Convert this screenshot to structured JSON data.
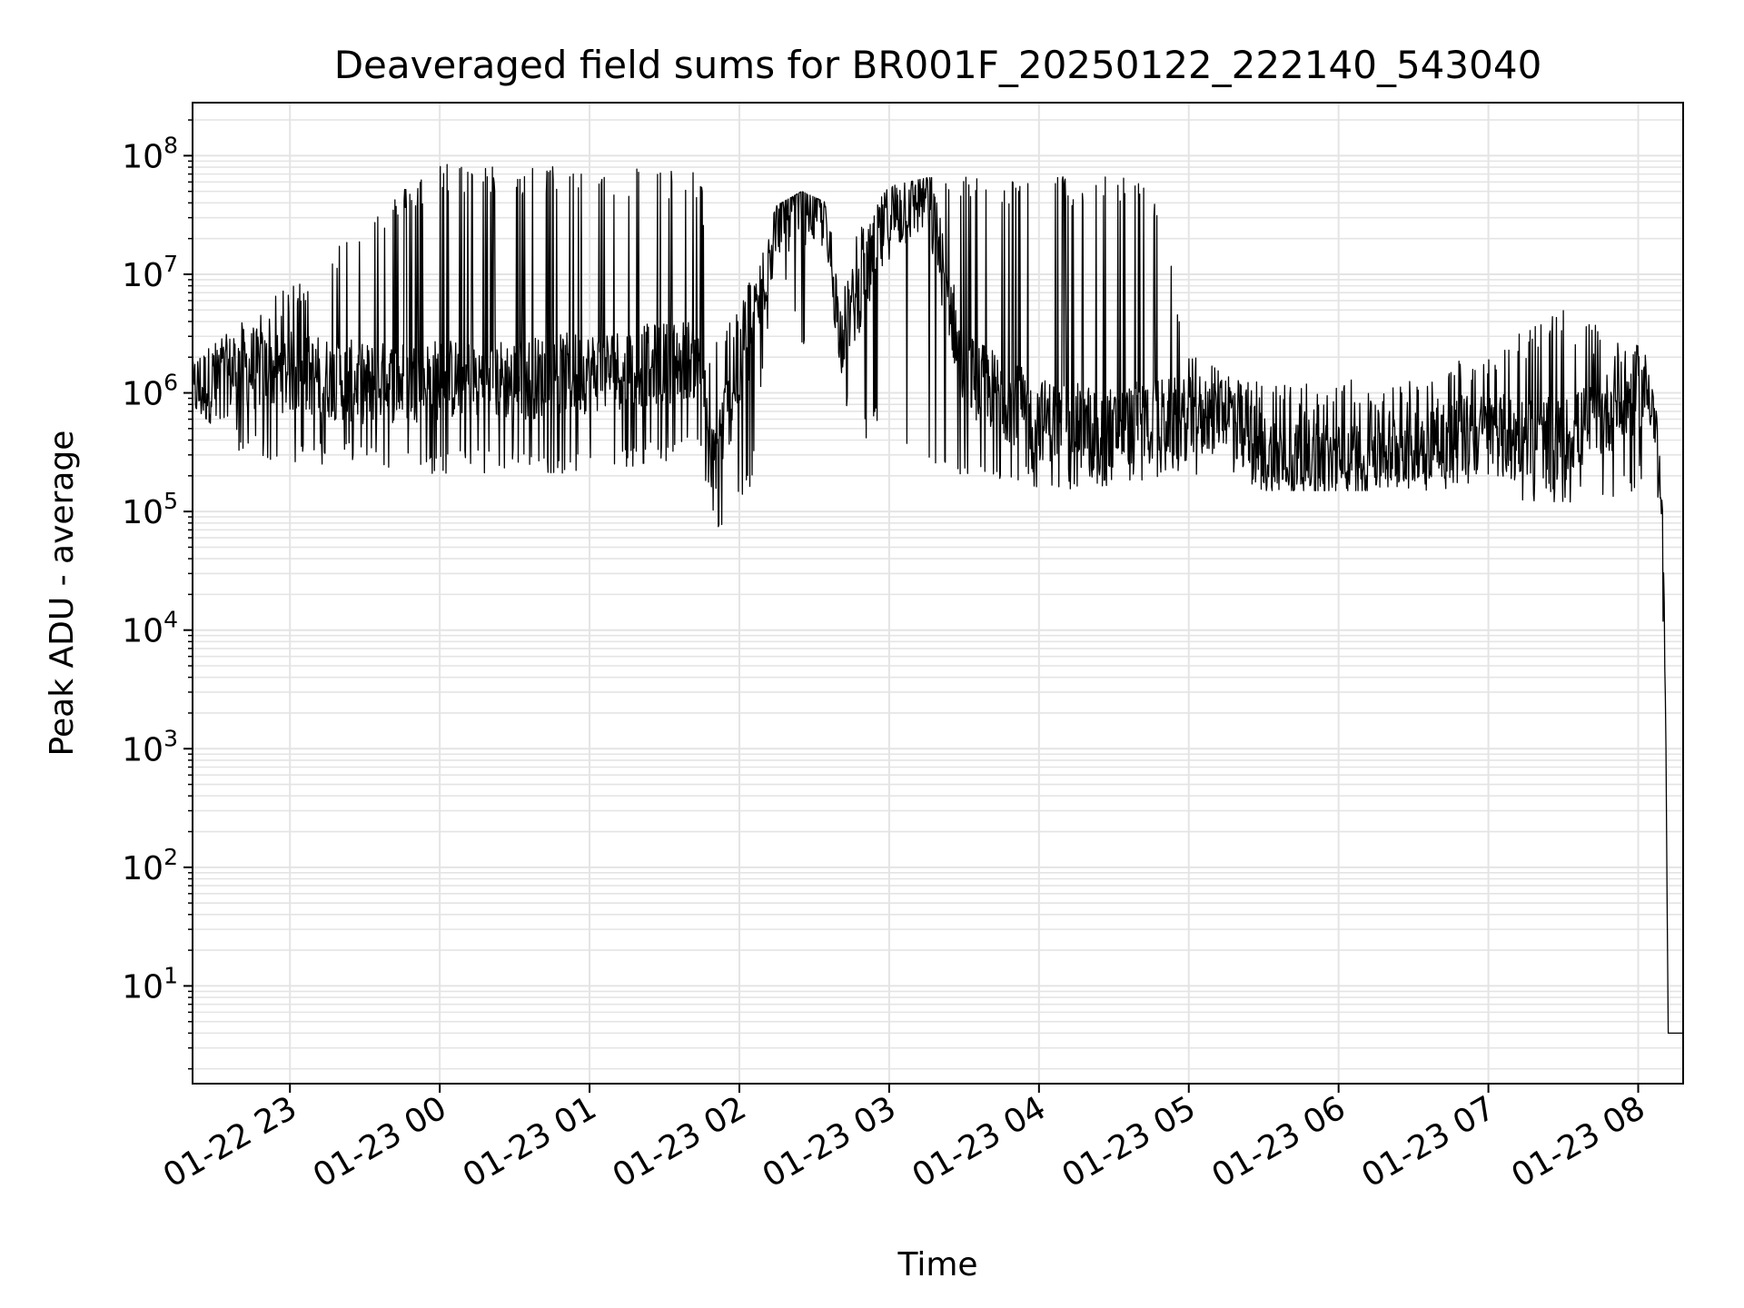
{
  "chart_data": {
    "type": "line",
    "title": "Deaveraged field sums for BR001F_20250122_222140_543040",
    "xlabel": "Time",
    "ylabel": "Peak ADU - average",
    "yscale": "log",
    "ylim": [
      1.5,
      280000000
    ],
    "xlim": [
      "01-22 22:21",
      "01-23 08:18"
    ],
    "grid": true,
    "line_color": "#000000",
    "xticks": [
      "01-22 23",
      "01-23 00",
      "01-23 01",
      "01-23 02",
      "01-23 03",
      "01-23 04",
      "01-23 05",
      "01-23 06",
      "01-23 07",
      "01-23 08"
    ],
    "yticks": [
      {
        "base": "10",
        "exp": "1"
      },
      {
        "base": "10",
        "exp": "2"
      },
      {
        "base": "10",
        "exp": "3"
      },
      {
        "base": "10",
        "exp": "4"
      },
      {
        "base": "10",
        "exp": "5"
      },
      {
        "base": "10",
        "exp": "6"
      },
      {
        "base": "10",
        "exp": "7"
      },
      {
        "base": "10",
        "exp": "8"
      }
    ],
    "series": [
      {
        "x": [
          "01-22 22:21",
          "01-22 22:40",
          "01-22 23:00",
          "01-22 23:30",
          "01-23 00:00",
          "01-23 00:30",
          "01-23 01:00",
          "01-23 01:30",
          "01-23 01:45",
          "01-23 01:48",
          "01-23 01:53",
          "01-23 02:05",
          "01-23 02:15",
          "01-23 02:25",
          "01-23 02:35",
          "01-23 02:40",
          "01-23 02:45",
          "01-23 03:00",
          "01-23 03:15",
          "01-23 03:30",
          "01-23 04:00",
          "01-23 04:30",
          "01-23 04:45",
          "01-23 05:00",
          "01-23 05:15",
          "01-23 05:30",
          "01-23 06:00",
          "01-23 06:30",
          "01-23 07:00",
          "01-23 07:30",
          "01-23 08:00",
          "01-23 08:05",
          "01-23 08:08",
          "01-23 08:10",
          "01-23 08:11",
          "01-23 08:12",
          "01-23 08:18"
        ],
        "y": [
          1000000,
          1600000,
          1500000,
          1200000,
          1300000,
          1300000,
          1500000,
          1800000,
          2000000,
          200000,
          500000,
          3000000,
          30000000,
          40000000,
          35000000,
          3000000,
          5000000,
          30000000,
          50000000,
          1500000,
          600000,
          500000,
          600000,
          600000,
          800000,
          300000,
          250000,
          400000,
          450000,
          400000,
          1000000,
          1100000,
          300000,
          50000,
          2000,
          4,
          4
        ],
        "upper_envelope": [
          1800000,
          4000000,
          8000000,
          30000000,
          90000000,
          80000000,
          85000000,
          80000000,
          70000000,
          3000000,
          3000000,
          10000000,
          38000000,
          50000000,
          40000000,
          8000000,
          20000000,
          55000000,
          65000000,
          68000000,
          68000000,
          68000000,
          68000000,
          2500000,
          1500000,
          1200000,
          1300000,
          1300000,
          2500000,
          5000000,
          2500000,
          1800000,
          500000,
          80000,
          2000,
          4,
          4
        ],
        "lower_envelope": [
          800000,
          300000,
          250000,
          250000,
          200000,
          220000,
          200000,
          250000,
          300000,
          80000,
          60000,
          150000,
          20000000,
          2000000,
          12000000,
          2000000,
          300000,
          600000,
          200000,
          150000,
          150000,
          150000,
          180000,
          200000,
          200000,
          150000,
          150000,
          150000,
          150000,
          100000,
          150000,
          300000,
          100000,
          10000,
          2000,
          4,
          4
        ]
      }
    ]
  }
}
